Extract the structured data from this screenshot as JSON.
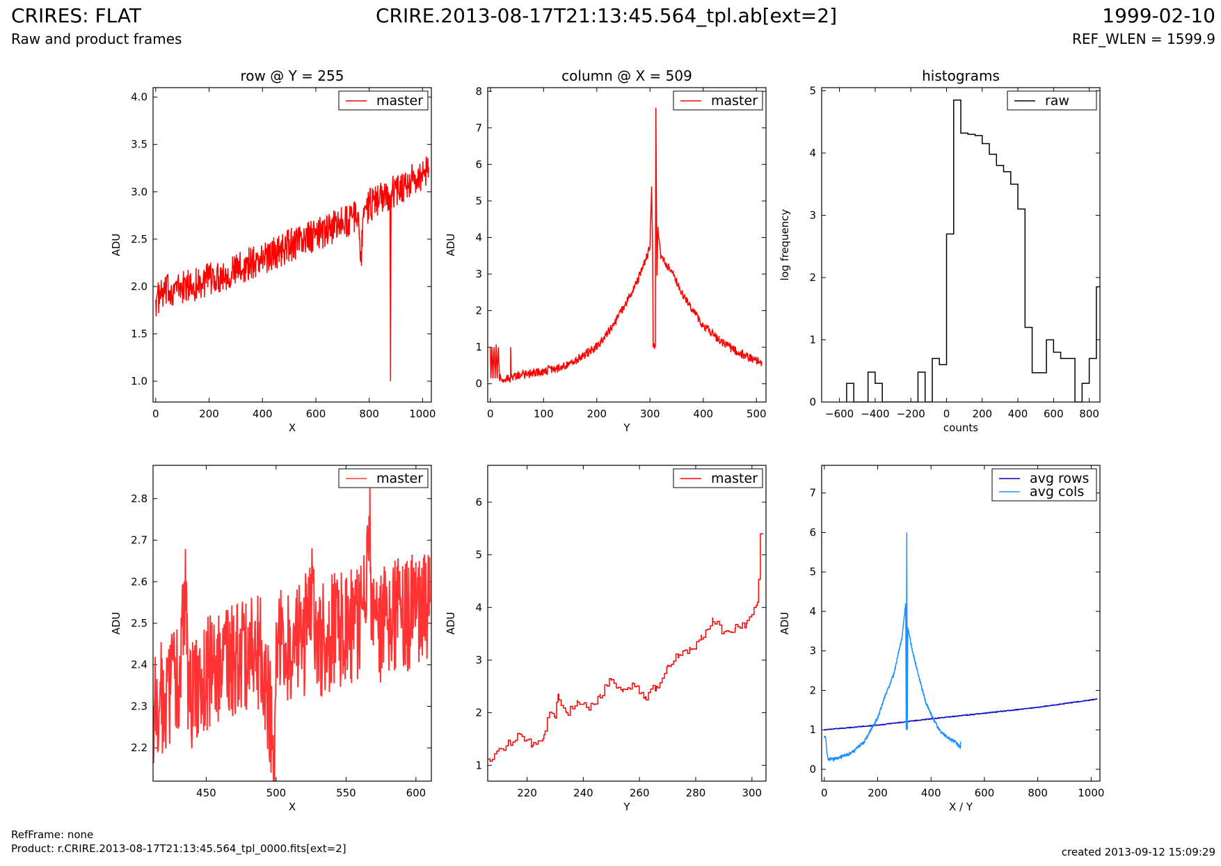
{
  "header": {
    "title": "CRIRES: FLAT",
    "subtitle": "Raw and product frames",
    "file": "CRIRE.2013-08-17T21:13:45.564_tpl.ab[ext=2]",
    "date": "1999-02-10",
    "ref_wlen": "REF_WLEN = 1599.9"
  },
  "footer": {
    "ref_frame": "RefFrame: none",
    "product": "Product: r.CRIRE.2013-08-17T21:13:45.564_tpl_0000.fits[ext=2]",
    "created": "created 2013-09-12 15:09:29"
  },
  "colors": {
    "master": "#ff0000",
    "raw": "#000000",
    "avg_rows": "#0000cc",
    "avg_cols": "#1e90ff"
  },
  "chart_data": [
    {
      "id": "row-plot",
      "type": "line",
      "title": "row @ Y = 255",
      "xlabel": "X",
      "ylabel": "ADU",
      "xlim": [
        -10,
        1033
      ],
      "ylim": [
        0.78,
        4.1
      ],
      "xticks": [
        0,
        200,
        400,
        600,
        800,
        1000
      ],
      "yticks": [
        1.0,
        1.5,
        2.0,
        2.5,
        3.0,
        3.5,
        4.0
      ],
      "ytick_decimals": 1,
      "legend_loc": "top-right",
      "series": [
        {
          "name": "master",
          "color": "#ff0000",
          "points": [
            [
              0,
              1.86
            ],
            [
              50,
              1.96
            ],
            [
              100,
              1.99
            ],
            [
              150,
              2.02
            ],
            [
              200,
              2.07
            ],
            [
              250,
              2.12
            ],
            [
              300,
              2.17
            ],
            [
              350,
              2.24
            ],
            [
              400,
              2.3
            ],
            [
              450,
              2.36
            ],
            [
              500,
              2.43
            ],
            [
              550,
              2.49
            ],
            [
              600,
              2.54
            ],
            [
              650,
              2.6
            ],
            [
              700,
              2.68
            ],
            [
              760,
              2.74
            ],
            [
              770,
              2.3
            ],
            [
              780,
              2.78
            ],
            [
              800,
              2.86
            ],
            [
              850,
              2.94
            ],
            [
              878,
              2.96
            ],
            [
              880,
              1.0
            ],
            [
              882,
              2.98
            ],
            [
              900,
              3.03
            ],
            [
              950,
              3.1
            ],
            [
              1000,
              3.17
            ],
            [
              1023,
              3.26
            ]
          ],
          "noise": 0.18
        }
      ]
    },
    {
      "id": "column-plot",
      "type": "line",
      "title": "column @ X = 509",
      "xlabel": "Y",
      "ylabel": "ADU",
      "xlim": [
        -5,
        518
      ],
      "ylim": [
        -0.5,
        8.1
      ],
      "xticks": [
        0,
        100,
        200,
        300,
        400,
        500
      ],
      "yticks": [
        0,
        1,
        2,
        3,
        4,
        5,
        6,
        7,
        8
      ],
      "ytick_decimals": 0,
      "legend_loc": "top-right",
      "series": [
        {
          "name": "master",
          "color": "#ff0000",
          "points": [
            [
              0,
              1.0
            ],
            [
              1,
              0.15
            ],
            [
              3,
              1.0
            ],
            [
              5,
              0.15
            ],
            [
              7,
              1.0
            ],
            [
              9,
              0.15
            ],
            [
              11,
              1.0
            ],
            [
              13,
              0.15
            ],
            [
              15,
              1.0
            ],
            [
              17,
              0.15
            ],
            [
              20,
              0.15
            ],
            [
              38,
              0.15
            ],
            [
              38,
              1.0
            ],
            [
              39,
              0.18
            ],
            [
              60,
              0.25
            ],
            [
              100,
              0.33
            ],
            [
              150,
              0.55
            ],
            [
              200,
              1.0
            ],
            [
              230,
              1.6
            ],
            [
              250,
              2.1
            ],
            [
              270,
              2.6
            ],
            [
              290,
              3.3
            ],
            [
              300,
              3.75
            ],
            [
              303,
              5.4
            ],
            [
              305,
              3.6
            ],
            [
              306,
              1.0
            ],
            [
              310,
              1.0
            ],
            [
              311,
              7.55
            ],
            [
              313,
              3.0
            ],
            [
              315,
              4.3
            ],
            [
              320,
              3.5
            ],
            [
              340,
              3.1
            ],
            [
              360,
              2.5
            ],
            [
              380,
              2.0
            ],
            [
              400,
              1.6
            ],
            [
              430,
              1.2
            ],
            [
              460,
              0.9
            ],
            [
              490,
              0.7
            ],
            [
              510,
              0.6
            ]
          ],
          "noise": 0.12
        }
      ]
    },
    {
      "id": "histogram-plot",
      "type": "step",
      "title": "histograms",
      "xlabel": "counts",
      "ylabel": "log frequency",
      "xlim": [
        -700,
        860
      ],
      "ylim": [
        0,
        5.05
      ],
      "xticks": [
        -600,
        -400,
        -200,
        0,
        200,
        400,
        600,
        800
      ],
      "yticks": [
        0,
        1,
        2,
        3,
        4,
        5
      ],
      "ytick_decimals": 0,
      "legend_loc": "top-right",
      "series": [
        {
          "name": "raw",
          "color": "#000000",
          "edges": [
            -560,
            -520,
            -480,
            -440,
            -400,
            -360,
            -320,
            -280,
            -240,
            -200,
            -160,
            -120,
            -80,
            -40,
            0,
            40,
            80,
            120,
            160,
            200,
            240,
            280,
            320,
            360,
            400,
            440,
            480,
            520,
            560,
            600,
            640,
            680,
            720,
            760,
            800,
            840,
            880
          ],
          "counts": [
            0.3,
            0,
            0,
            0.48,
            0.3,
            0,
            0,
            0,
            0,
            0,
            0.48,
            0,
            0.7,
            0.6,
            2.7,
            4.85,
            4.32,
            4.3,
            4.28,
            4.15,
            3.98,
            3.8,
            3.7,
            3.5,
            3.1,
            1.2,
            0.47,
            0.47,
            1.0,
            0.8,
            0.7,
            0.7,
            0,
            0.3,
            0.7,
            1.85
          ]
        }
      ]
    },
    {
      "id": "row-zoom-plot",
      "type": "line",
      "title": "",
      "xlabel": "X",
      "ylabel": "ADU",
      "xlim": [
        412,
        611
      ],
      "ylim": [
        2.12,
        2.88
      ],
      "xticks": [
        450,
        500,
        550,
        600
      ],
      "yticks": [
        2.2,
        2.3,
        2.4,
        2.5,
        2.6,
        2.7,
        2.8
      ],
      "ytick_decimals": 1,
      "legend_loc": "top-right",
      "series": [
        {
          "name": "master",
          "color": "#ff3333",
          "points": [
            [
              412,
              2.3
            ],
            [
              420,
              2.33
            ],
            [
              430,
              2.35
            ],
            [
              436,
              2.57
            ],
            [
              437,
              2.3
            ],
            [
              450,
              2.38
            ],
            [
              460,
              2.4
            ],
            [
              470,
              2.41
            ],
            [
              480,
              2.42
            ],
            [
              490,
              2.43
            ],
            [
              499,
              2.18
            ],
            [
              500,
              2.44
            ],
            [
              510,
              2.45
            ],
            [
              520,
              2.46
            ],
            [
              527,
              2.63
            ],
            [
              528,
              2.44
            ],
            [
              540,
              2.48
            ],
            [
              550,
              2.49
            ],
            [
              560,
              2.5
            ],
            [
              567,
              2.72
            ],
            [
              568,
              2.46
            ],
            [
              580,
              2.51
            ],
            [
              590,
              2.52
            ],
            [
              600,
              2.53
            ],
            [
              610,
              2.55
            ]
          ],
          "noise": 0.14
        }
      ]
    },
    {
      "id": "column-zoom-plot",
      "type": "step",
      "title": "",
      "xlabel": "Y",
      "ylabel": "ADU",
      "xlim": [
        206,
        305
      ],
      "ylim": [
        0.7,
        6.7
      ],
      "xticks": [
        220,
        240,
        260,
        280,
        300
      ],
      "yticks": [
        1,
        2,
        3,
        4,
        5,
        6
      ],
      "ytick_decimals": 0,
      "legend_loc": "top-right",
      "series": [
        {
          "name": "master",
          "color": "#ff0000",
          "points": [
            [
              206,
              1.12
            ],
            [
              210,
              1.3
            ],
            [
              214,
              1.45
            ],
            [
              218,
              1.58
            ],
            [
              222,
              1.38
            ],
            [
              226,
              1.58
            ],
            [
              228,
              2.0
            ],
            [
              230,
              1.9
            ],
            [
              231,
              2.35
            ],
            [
              234,
              2.0
            ],
            [
              238,
              2.2
            ],
            [
              242,
              2.05
            ],
            [
              246,
              2.35
            ],
            [
              250,
              2.62
            ],
            [
              254,
              2.4
            ],
            [
              258,
              2.55
            ],
            [
              262,
              2.3
            ],
            [
              266,
              2.5
            ],
            [
              270,
              2.9
            ],
            [
              274,
              3.1
            ],
            [
              278,
              3.2
            ],
            [
              282,
              3.4
            ],
            [
              286,
              3.8
            ],
            [
              290,
              3.5
            ],
            [
              294,
              3.6
            ],
            [
              298,
              3.7
            ],
            [
              302,
              4.1
            ],
            [
              303,
              5.4
            ],
            [
              304,
              5.4
            ]
          ],
          "noise": 0.08
        }
      ]
    },
    {
      "id": "average-plot",
      "type": "line",
      "title": "",
      "xlabel": "X / Y",
      "ylabel": "ADU",
      "xlim": [
        -10,
        1033
      ],
      "ylim": [
        -0.3,
        7.7
      ],
      "xticks": [
        0,
        200,
        400,
        600,
        800,
        1000
      ],
      "yticks": [
        0,
        1,
        2,
        3,
        4,
        5,
        6,
        7
      ],
      "ytick_decimals": 0,
      "legend_loc": "top-right",
      "series": [
        {
          "name": "avg rows",
          "color": "#0000cc",
          "points": [
            [
              0,
              1.0
            ],
            [
              200,
              1.12
            ],
            [
              400,
              1.28
            ],
            [
              600,
              1.42
            ],
            [
              800,
              1.57
            ],
            [
              1023,
              1.78
            ]
          ],
          "noise": 0.01
        },
        {
          "name": "avg cols",
          "color": "#1e90ff",
          "points": [
            [
              0,
              0.85
            ],
            [
              5,
              0.8
            ],
            [
              10,
              0.4
            ],
            [
              15,
              0.25
            ],
            [
              50,
              0.28
            ],
            [
              100,
              0.4
            ],
            [
              150,
              0.7
            ],
            [
              200,
              1.3
            ],
            [
              230,
              1.9
            ],
            [
              260,
              2.4
            ],
            [
              290,
              3.3
            ],
            [
              305,
              4.2
            ],
            [
              307,
              1.0
            ],
            [
              309,
              6.0
            ],
            [
              311,
              1.0
            ],
            [
              313,
              3.6
            ],
            [
              330,
              3.0
            ],
            [
              360,
              2.2
            ],
            [
              380,
              1.7
            ],
            [
              400,
              1.4
            ],
            [
              430,
              1.0
            ],
            [
              460,
              0.8
            ],
            [
              490,
              0.7
            ],
            [
              510,
              0.55
            ],
            [
              511,
              0.7
            ]
          ],
          "noise": 0.04
        }
      ]
    }
  ]
}
